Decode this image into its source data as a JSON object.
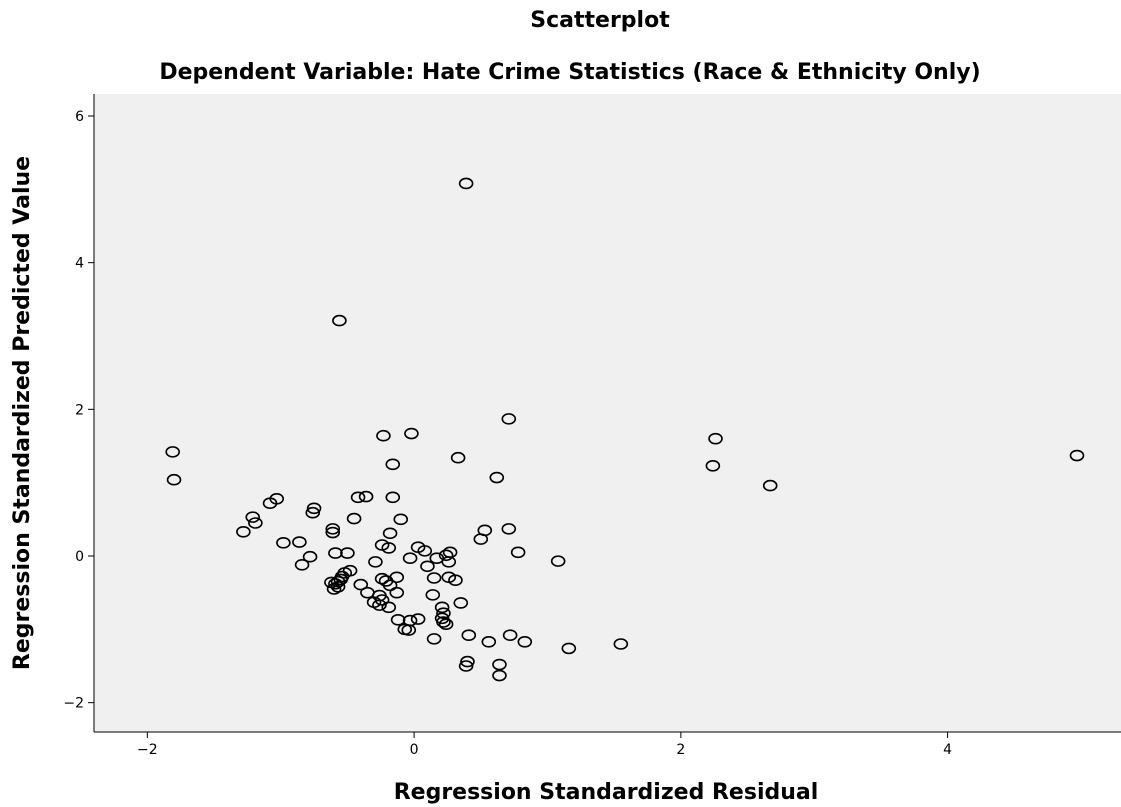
{
  "chart_data": {
    "type": "scatter",
    "title": "Scatterplot",
    "subtitle": "Dependent Variable: Hate Crime Statistics (Race & Ethnicity Only)",
    "xlabel": "Regression Standardized Residual",
    "ylabel": "Regression Standardized Predicted Value",
    "xlim": [
      -2.4,
      5.3
    ],
    "ylim": [
      -2.4,
      6.3
    ],
    "xticks": [
      -2,
      0,
      2,
      4
    ],
    "yticks": [
      -2,
      0,
      2,
      4,
      6
    ],
    "grid": false,
    "colors": {
      "plot_background": "#f0f0f0",
      "marker_stroke": "#000000",
      "axis": "#000000"
    },
    "points": [
      [
        0.39,
        5.08
      ],
      [
        -0.56,
        3.21
      ],
      [
        -0.23,
        1.64
      ],
      [
        -0.02,
        1.67
      ],
      [
        0.71,
        1.87
      ],
      [
        0.33,
        1.34
      ],
      [
        -0.16,
        1.25
      ],
      [
        0.62,
        1.07
      ],
      [
        -1.81,
        1.42
      ],
      [
        -1.8,
        1.04
      ],
      [
        2.26,
        1.6
      ],
      [
        2.24,
        1.23
      ],
      [
        2.67,
        0.96
      ],
      [
        4.97,
        1.37
      ],
      [
        -1.03,
        0.78
      ],
      [
        -1.08,
        0.72
      ],
      [
        -0.75,
        0.65
      ],
      [
        -0.76,
        0.59
      ],
      [
        -1.21,
        0.53
      ],
      [
        -1.19,
        0.45
      ],
      [
        -1.28,
        0.33
      ],
      [
        -0.42,
        0.8
      ],
      [
        -0.36,
        0.81
      ],
      [
        -0.16,
        0.8
      ],
      [
        -0.45,
        0.51
      ],
      [
        -0.1,
        0.5
      ],
      [
        -0.61,
        0.37
      ],
      [
        -0.61,
        0.32
      ],
      [
        -0.18,
        0.31
      ],
      [
        -0.24,
        0.15
      ],
      [
        -0.19,
        0.11
      ],
      [
        -0.98,
        0.18
      ],
      [
        -0.86,
        0.19
      ],
      [
        -0.59,
        0.04
      ],
      [
        -0.5,
        0.04
      ],
      [
        -0.78,
        -0.01
      ],
      [
        -0.84,
        -0.12
      ],
      [
        0.53,
        0.35
      ],
      [
        0.71,
        0.37
      ],
      [
        0.5,
        0.23
      ],
      [
        0.03,
        0.12
      ],
      [
        0.08,
        0.07
      ],
      [
        0.27,
        0.05
      ],
      [
        0.24,
        0.01
      ],
      [
        0.78,
        0.05
      ],
      [
        -0.03,
        -0.03
      ],
      [
        0.17,
        -0.03
      ],
      [
        0.26,
        -0.08
      ],
      [
        0.1,
        -0.14
      ],
      [
        1.08,
        -0.07
      ],
      [
        -0.29,
        -0.08
      ],
      [
        -0.48,
        -0.2
      ],
      [
        -0.52,
        -0.23
      ],
      [
        -0.54,
        -0.28
      ],
      [
        -0.55,
        -0.32
      ],
      [
        -0.57,
        -0.35
      ],
      [
        -0.59,
        -0.38
      ],
      [
        -0.62,
        -0.36
      ],
      [
        -0.6,
        -0.45
      ],
      [
        -0.57,
        -0.42
      ],
      [
        -0.24,
        -0.31
      ],
      [
        -0.21,
        -0.34
      ],
      [
        -0.18,
        -0.4
      ],
      [
        -0.13,
        -0.29
      ],
      [
        -0.4,
        -0.39
      ],
      [
        -0.35,
        -0.5
      ],
      [
        -0.26,
        -0.54
      ],
      [
        -0.13,
        -0.5
      ],
      [
        0.26,
        -0.29
      ],
      [
        0.31,
        -0.33
      ],
      [
        0.15,
        -0.3
      ],
      [
        0.14,
        -0.53
      ],
      [
        0.35,
        -0.64
      ],
      [
        -0.3,
        -0.63
      ],
      [
        -0.24,
        -0.6
      ],
      [
        -0.26,
        -0.67
      ],
      [
        -0.19,
        -0.7
      ],
      [
        0.21,
        -0.7
      ],
      [
        0.22,
        -0.78
      ],
      [
        0.21,
        -0.85
      ],
      [
        0.22,
        -0.9
      ],
      [
        0.24,
        -0.93
      ],
      [
        -0.12,
        -0.87
      ],
      [
        -0.03,
        -0.88
      ],
      [
        0.03,
        -0.86
      ],
      [
        -0.07,
        -1.0
      ],
      [
        -0.04,
        -1.01
      ],
      [
        0.15,
        -1.13
      ],
      [
        0.41,
        -1.08
      ],
      [
        0.72,
        -1.08
      ],
      [
        0.56,
        -1.17
      ],
      [
        0.83,
        -1.17
      ],
      [
        1.16,
        -1.26
      ],
      [
        1.55,
        -1.2
      ],
      [
        0.4,
        -1.44
      ],
      [
        0.39,
        -1.5
      ],
      [
        0.64,
        -1.48
      ],
      [
        0.64,
        -1.63
      ]
    ]
  }
}
